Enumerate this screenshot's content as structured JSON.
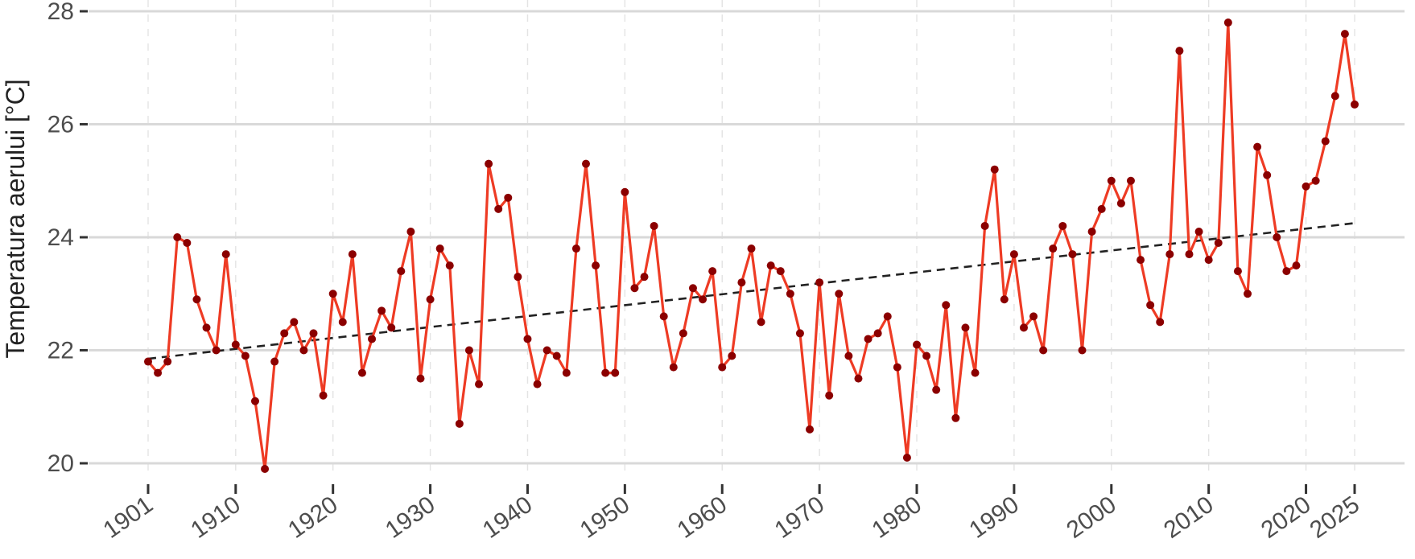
{
  "chart_data": {
    "type": "line",
    "title": "",
    "xlabel": "",
    "ylabel": "Temperatura aerului [°C]",
    "xlim": [
      1901,
      2025
    ],
    "ylim": [
      20,
      28
    ],
    "x_ticks": [
      1901,
      1910,
      1920,
      1930,
      1940,
      1950,
      1960,
      1970,
      1980,
      1990,
      2000,
      2010,
      2020,
      2025
    ],
    "y_ticks": [
      20,
      22,
      24,
      26,
      28
    ],
    "grid": "horizontal major lines; dashed vertical lines",
    "legend": "none",
    "colors": {
      "line": "#ee3b24",
      "point": "#8b0000",
      "trend": "#222222",
      "grid": "#d9d9d9"
    },
    "series": [
      {
        "x": [
          1901,
          1902,
          1903,
          1904,
          1905,
          1906,
          1907,
          1908,
          1909,
          1910,
          1911,
          1912,
          1913,
          1914,
          1915,
          1916,
          1917,
          1918,
          1919,
          1920,
          1921,
          1922,
          1923,
          1924,
          1925,
          1926,
          1927,
          1928,
          1929,
          1930,
          1931,
          1932,
          1933,
          1934,
          1935,
          1936,
          1937,
          1938,
          1939,
          1940,
          1941,
          1942,
          1943,
          1944,
          1945,
          1946,
          1947,
          1948,
          1949,
          1950,
          1951,
          1952,
          1953,
          1954,
          1955,
          1956,
          1957,
          1958,
          1959,
          1960,
          1961,
          1962,
          1963,
          1964,
          1965,
          1966,
          1967,
          1968,
          1969,
          1970,
          1971,
          1972,
          1973,
          1974,
          1975,
          1976,
          1977,
          1978,
          1979,
          1980,
          1981,
          1982,
          1983,
          1984,
          1985,
          1986,
          1987,
          1988,
          1989,
          1990,
          1991,
          1992,
          1993,
          1994,
          1995,
          1996,
          1997,
          1998,
          1999,
          2000,
          2001,
          2002,
          2003,
          2004,
          2005,
          2006,
          2007,
          2008,
          2009,
          2010,
          2011,
          2012,
          2013,
          2014,
          2015,
          2016,
          2017,
          2018,
          2019,
          2020,
          2021,
          2022,
          2023,
          2024,
          2025
        ],
        "y": [
          21.8,
          21.6,
          21.8,
          24.0,
          23.9,
          22.9,
          22.4,
          22.0,
          23.7,
          22.1,
          21.9,
          21.1,
          19.9,
          21.8,
          22.3,
          22.5,
          22.0,
          22.3,
          21.2,
          23.0,
          22.5,
          23.7,
          21.6,
          22.2,
          22.7,
          22.4,
          23.4,
          24.1,
          21.5,
          22.9,
          23.8,
          23.5,
          20.7,
          22.0,
          21.4,
          25.3,
          24.5,
          24.7,
          23.3,
          22.2,
          21.4,
          22.0,
          21.9,
          21.6,
          23.8,
          25.3,
          23.5,
          21.6,
          21.6,
          24.8,
          23.1,
          23.3,
          24.2,
          22.6,
          21.7,
          22.3,
          23.1,
          22.9,
          23.4,
          21.7,
          21.9,
          23.2,
          23.8,
          22.5,
          23.5,
          23.4,
          23.0,
          22.3,
          20.6,
          23.2,
          21.2,
          23.0,
          21.9,
          21.5,
          22.2,
          22.3,
          22.6,
          21.7,
          20.1,
          22.1,
          21.9,
          21.3,
          22.8,
          20.8,
          22.4,
          21.6,
          24.2,
          25.2,
          22.9,
          23.7,
          22.4,
          22.6,
          22.0,
          23.8,
          24.2,
          23.7,
          22.0,
          24.1,
          24.5,
          25.0,
          24.6,
          25.0,
          23.6,
          22.8,
          22.5,
          23.7,
          27.3,
          23.7,
          24.1,
          23.6,
          23.9,
          27.8,
          23.4,
          23.0,
          25.6,
          25.1,
          24.0,
          23.4,
          23.5,
          24.9,
          25.0,
          25.7,
          26.5,
          27.6,
          26.35
        ]
      }
    ],
    "trend": {
      "x": [
        1901,
        2025
      ],
      "y": [
        21.85,
        24.25
      ]
    }
  }
}
